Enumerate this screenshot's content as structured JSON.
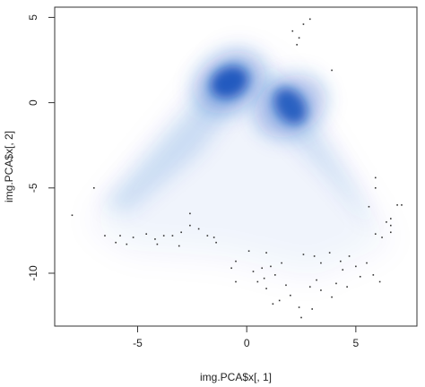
{
  "chart_data": {
    "type": "scatter",
    "subtype": "smoothed-density-scatter",
    "xlabel": "img.PCA$x[, 1]",
    "ylabel": "img.PCA$x[, 2]",
    "xlim": [
      -8.8,
      7.8
    ],
    "ylim": [
      -13.1,
      5.6
    ],
    "x_ticks": [
      -5,
      0,
      5
    ],
    "y_ticks": [
      -10,
      -5,
      0,
      5
    ],
    "grid": false,
    "density_color": "#1558c7",
    "point_color": "#333333",
    "density_peaks": [
      {
        "x": -0.8,
        "y": 1.2,
        "intensity": 1.0
      },
      {
        "x": 2.0,
        "y": -0.2,
        "intensity": 0.95
      }
    ],
    "outlier_points": [
      [
        -8.0,
        -6.6
      ],
      [
        -7.0,
        -5.0
      ],
      [
        -6.5,
        -7.8
      ],
      [
        -5.8,
        -7.8
      ],
      [
        -5.2,
        -7.9
      ],
      [
        -4.6,
        -7.7
      ],
      [
        -4.2,
        -8.0
      ],
      [
        -3.8,
        -7.8
      ],
      [
        -3.4,
        -7.8
      ],
      [
        -3.0,
        -7.6
      ],
      [
        -2.6,
        -7.2
      ],
      [
        -2.2,
        -7.4
      ],
      [
        -1.8,
        -7.8
      ],
      [
        -1.5,
        -7.9
      ],
      [
        -2.6,
        -6.5
      ],
      [
        -1.4,
        -8.2
      ],
      [
        -3.1,
        -8.4
      ],
      [
        -4.1,
        -8.3
      ],
      [
        -5.5,
        -8.3
      ],
      [
        -6.0,
        -8.2
      ],
      [
        0.1,
        -8.7
      ],
      [
        0.9,
        -8.8
      ],
      [
        1.1,
        -9.6
      ],
      [
        1.6,
        -9.4
      ],
      [
        2.6,
        -8.9
      ],
      [
        3.1,
        -9.0
      ],
      [
        3.8,
        -8.8
      ],
      [
        4.7,
        -9.0
      ],
      [
        5.0,
        -9.6
      ],
      [
        5.5,
        -9.4
      ],
      [
        4.3,
        -9.3
      ],
      [
        3.4,
        -9.4
      ],
      [
        -0.5,
        -9.3
      ],
      [
        -0.7,
        -9.7
      ],
      [
        -0.5,
        -10.5
      ],
      [
        0.3,
        -9.9
      ],
      [
        0.7,
        -9.7
      ],
      [
        0.5,
        -10.5
      ],
      [
        0.8,
        -10.3
      ],
      [
        0.9,
        -10.9
      ],
      [
        1.3,
        -10.1
      ],
      [
        1.8,
        -10.7
      ],
      [
        1.2,
        -11.8
      ],
      [
        2.0,
        -11.3
      ],
      [
        2.9,
        -10.8
      ],
      [
        2.4,
        -12.0
      ],
      [
        3.0,
        -12.1
      ],
      [
        3.4,
        -11.0
      ],
      [
        3.2,
        -10.4
      ],
      [
        4.1,
        -10.6
      ],
      [
        4.6,
        -10.8
      ],
      [
        5.2,
        -10.2
      ],
      [
        5.8,
        -10.1
      ],
      [
        6.1,
        -10.5
      ],
      [
        2.5,
        -12.6
      ],
      [
        1.5,
        -11.6
      ],
      [
        3.9,
        -11.4
      ],
      [
        4.4,
        -9.8
      ],
      [
        5.9,
        -7.7
      ],
      [
        6.2,
        -7.9
      ],
      [
        6.4,
        -7.0
      ],
      [
        6.6,
        -7.6
      ],
      [
        5.6,
        -6.1
      ],
      [
        5.9,
        -5.0
      ],
      [
        6.6,
        -6.8
      ],
      [
        6.9,
        -6.0
      ],
      [
        7.1,
        -6.0
      ],
      [
        5.9,
        -4.4
      ],
      [
        2.6,
        4.6
      ],
      [
        2.9,
        4.9
      ],
      [
        2.1,
        4.2
      ],
      [
        2.4,
        3.8
      ],
      [
        2.3,
        3.4
      ],
      [
        3.9,
        1.9
      ],
      [
        6.6,
        -7.2
      ]
    ]
  }
}
